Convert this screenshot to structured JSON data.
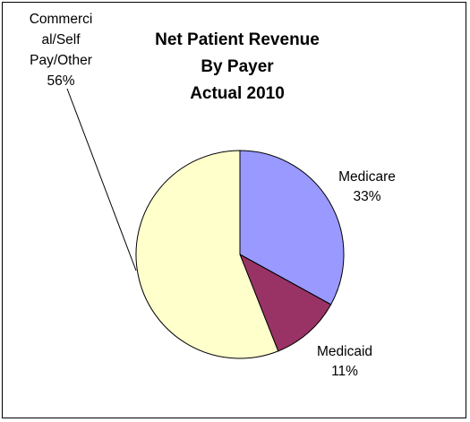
{
  "chart_data": {
    "type": "pie",
    "title_lines": [
      "Net Patient Revenue",
      "By Payer",
      "Actual 2010"
    ],
    "slices": [
      {
        "name": "Medicare",
        "value": 33,
        "label_lines": [
          "Medicare",
          "33%"
        ],
        "color": "#9999ff"
      },
      {
        "name": "Medicaid",
        "value": 11,
        "label_lines": [
          "Medicaid",
          "11%"
        ],
        "color": "#993366"
      },
      {
        "name": "Commercial/Self Pay/Other",
        "value": 56,
        "label_lines": [
          "Commerci",
          "al/Self",
          "Pay/Other",
          "56%"
        ],
        "color": "#ffffcc"
      }
    ],
    "legend": "none",
    "start_angle_deg": 0,
    "direction": "clockwise"
  }
}
